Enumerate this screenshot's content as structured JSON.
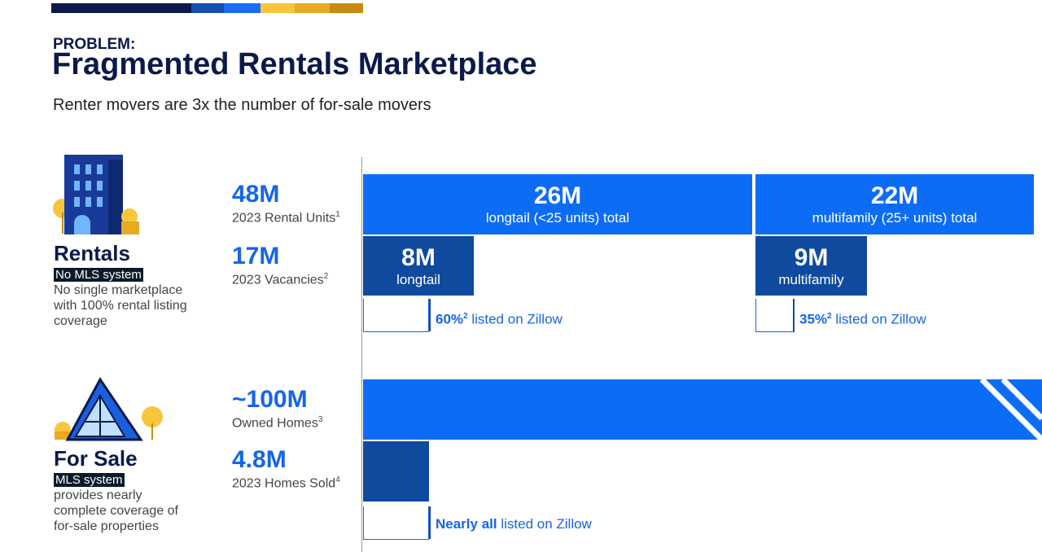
{
  "header": {
    "eyebrow": "PROBLEM:",
    "title": "Fragmented Rentals Marketplace",
    "subtitle": "Renter movers are 3x the number of for-sale movers"
  },
  "sections": {
    "rentals": {
      "label": "Rentals",
      "tag": "No MLS system",
      "description": "No single marketplace with 100% rental listing coverage"
    },
    "for_sale": {
      "label": "For Sale",
      "tag": "MLS system",
      "description": "provides nearly complete coverage of for-sale properties"
    }
  },
  "rows": {
    "rental_units": {
      "value": "48M",
      "label": "2023 Rental Units",
      "note": "1"
    },
    "vacancies": {
      "value": "17M",
      "label": "2023 Vacancies",
      "note": "2"
    },
    "owned_homes": {
      "value": "~100M",
      "label": "Owned Homes",
      "note": "3"
    },
    "homes_sold": {
      "value": "4.8M",
      "label": "2023 Homes Sold",
      "note": "4"
    }
  },
  "segments": {
    "longtail_total": {
      "value": "26M",
      "label": "longtail (<25 units) total"
    },
    "multifamily_total": {
      "value": "22M",
      "label": "multifamily (25+ units) total"
    },
    "longtail_vacancies": {
      "value": "8M",
      "label": "longtail"
    },
    "multifamily_vacancies": {
      "value": "9M",
      "label": "multifamily"
    }
  },
  "listed": {
    "longtail": {
      "share": "60%",
      "note": "2",
      "text": "listed on Zillow"
    },
    "multifamily": {
      "share": "35%",
      "note": "2",
      "text": "listed on Zillow"
    },
    "for_sale": {
      "share": "Nearly all",
      "text": "listed on Zillow"
    }
  }
}
